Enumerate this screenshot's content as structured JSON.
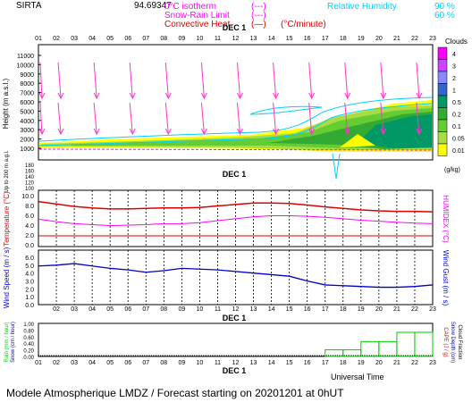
{
  "header": {
    "station": "SIRTA",
    "coords": "94.69347",
    "legend_lines": [
      {
        "label": "0°C isotherm",
        "sample": "(---)",
        "color": "#ff00ff"
      },
      {
        "label": "Snow-Rain Limit",
        "sample": "(---)",
        "color": "#ff00ff"
      },
      {
        "label": "Convective Heat.",
        "sample": "(—)",
        "unit": "(°C/minute)",
        "color": "#e00000"
      }
    ],
    "rh_label": "Relative Humidity",
    "rh_values": [
      "90 %",
      "60 %"
    ],
    "rh_color": "#00d0ff"
  },
  "colors": {
    "cloud": "#00aa00",
    "temperature": "#e00000",
    "humidex": "#ff00ff",
    "wind_speed": "#0000cc",
    "rain": "#00cc00",
    "wind_arrows": "#ff33cc",
    "capacity_axis": "#e00000",
    "snow_axis": "#0000cc"
  },
  "hours_top": [
    "01",
    "02",
    "03",
    "04",
    "05",
    "06",
    "07",
    "08",
    "09",
    "10",
    "11",
    "12",
    "13",
    "14",
    "15",
    "16",
    "17",
    "18",
    "19",
    "20",
    "21",
    "22",
    "23"
  ],
  "hours_mid": [
    "02",
    "03",
    "04",
    "05",
    "06",
    "07",
    "08",
    "09",
    "10",
    "11",
    "12",
    "13",
    "14",
    "15",
    "16",
    "17",
    "18",
    "19",
    "20",
    "21",
    "22",
    "23"
  ],
  "hours_bottom": [
    "01",
    "02",
    "03",
    "04",
    "05",
    "06",
    "07",
    "08",
    "09",
    "10",
    "11",
    "12",
    "13",
    "14",
    "15",
    "16",
    "17",
    "18",
    "19",
    "20",
    "21",
    "22",
    "23"
  ],
  "date_label": "DEC 1",
  "clouds_legend": {
    "title": "Clouds",
    "unit": "(g/kg)",
    "values": [
      "4",
      "3",
      "2",
      "1",
      "0.5",
      "0.2",
      "0.1",
      "0.05",
      "0.01"
    ],
    "swatches": [
      "#ff00ff",
      "#cc44ff",
      "#8888ff",
      "#3366cc",
      "#009966",
      "#33aa33",
      "#66cc33",
      "#aadd44",
      "#ffff00"
    ]
  },
  "chart_data": [
    {
      "type": "heatmap",
      "name": "cloud-height",
      "ylabel": "Height (m a.s.l.)",
      "ylabel2": "Up to 200 m a.g.l.",
      "yticks_upper": [
        "11000",
        "10000",
        "9000",
        "8000",
        "7000",
        "6000",
        "5000",
        "4000",
        "3000",
        "2000",
        "1000"
      ],
      "yticks_lower": [
        "180",
        "160",
        "140",
        "120",
        "100"
      ]
    },
    {
      "type": "line",
      "name": "temperature",
      "ylabel": "Temperature (°C)",
      "ylabel2": "HUMIDEX (°C)",
      "yticks": [
        "10.0",
        "8.0",
        "6.0",
        "4.0",
        "2.0",
        "0.0"
      ],
      "ylim": [
        0,
        10
      ],
      "x": [
        1,
        2,
        3,
        4,
        5,
        6,
        7,
        8,
        9,
        10,
        11,
        12,
        13,
        14,
        15,
        16,
        17,
        18,
        19,
        20,
        21,
        22,
        23
      ],
      "series": [
        {
          "key": "temperature",
          "values": [
            8.8,
            8.3,
            7.8,
            7.5,
            7.3,
            7.3,
            7.4,
            7.5,
            7.5,
            7.6,
            7.9,
            8.2,
            8.5,
            8.5,
            8.4,
            8.1,
            7.7,
            7.4,
            7.1,
            6.9,
            6.8,
            6.8,
            6.7
          ]
        },
        {
          "key": "humidex",
          "values": [
            5.2,
            4.7,
            4.3,
            4.1,
            3.9,
            4.0,
            4.1,
            4.3,
            4.3,
            4.5,
            4.9,
            5.3,
            5.7,
            5.9,
            5.9,
            5.8,
            5.6,
            5.3,
            5.0,
            4.8,
            4.6,
            4.4,
            4.3
          ]
        }
      ]
    },
    {
      "type": "line",
      "name": "wind-speed",
      "ylabel": "Wind Speed (m / s)",
      "ylabel2": "Wind Gust (m / s)",
      "yticks": [
        "6.0",
        "5.0",
        "4.0",
        "3.0",
        "2.0",
        "1.0",
        "0.0"
      ],
      "ylim": [
        0,
        6
      ],
      "x": [
        1,
        2,
        3,
        4,
        5,
        6,
        7,
        8,
        9,
        10,
        11,
        12,
        13,
        14,
        15,
        16,
        17,
        18,
        19,
        20,
        21,
        22,
        23
      ],
      "series": [
        {
          "key": "wind_speed",
          "values": [
            4.9,
            5.0,
            5.2,
            4.9,
            4.6,
            4.4,
            4.1,
            4.3,
            4.6,
            4.5,
            4.4,
            4.2,
            4.0,
            3.8,
            3.6,
            3.0,
            2.5,
            2.4,
            2.3,
            2.2,
            2.2,
            2.3,
            2.5
          ]
        }
      ]
    },
    {
      "type": "bar",
      "name": "rain",
      "ylabel": "Rain (mm / hour)",
      "ylabel2": "Snow (cm / hour)",
      "ylabel_right": "CAPE (J / g)",
      "ylabel_right2": "Snow Depth (cm)",
      "ylabel_right3": "Cloud Fraction",
      "yticks": [
        "1.00",
        "0.80",
        "0.60",
        "0.40",
        "0.20",
        "0.00"
      ],
      "ylim": [
        0,
        1
      ],
      "x": [
        1,
        2,
        3,
        4,
        5,
        6,
        7,
        8,
        9,
        10,
        11,
        12,
        13,
        14,
        15,
        16,
        17,
        18,
        19,
        20,
        21,
        22,
        23
      ],
      "series": [
        {
          "key": "rain",
          "values": [
            0,
            0,
            0,
            0,
            0,
            0,
            0,
            0,
            0,
            0,
            0,
            0,
            0,
            0,
            0,
            0,
            0,
            0.2,
            0.2,
            0.45,
            0.45,
            0.73,
            0.73
          ]
        }
      ]
    }
  ],
  "footer": {
    "universal_time": "Universal Time",
    "forecast": "Modele Atmospherique LMDZ / Forecast starting on 20201201 at 0hUT"
  }
}
